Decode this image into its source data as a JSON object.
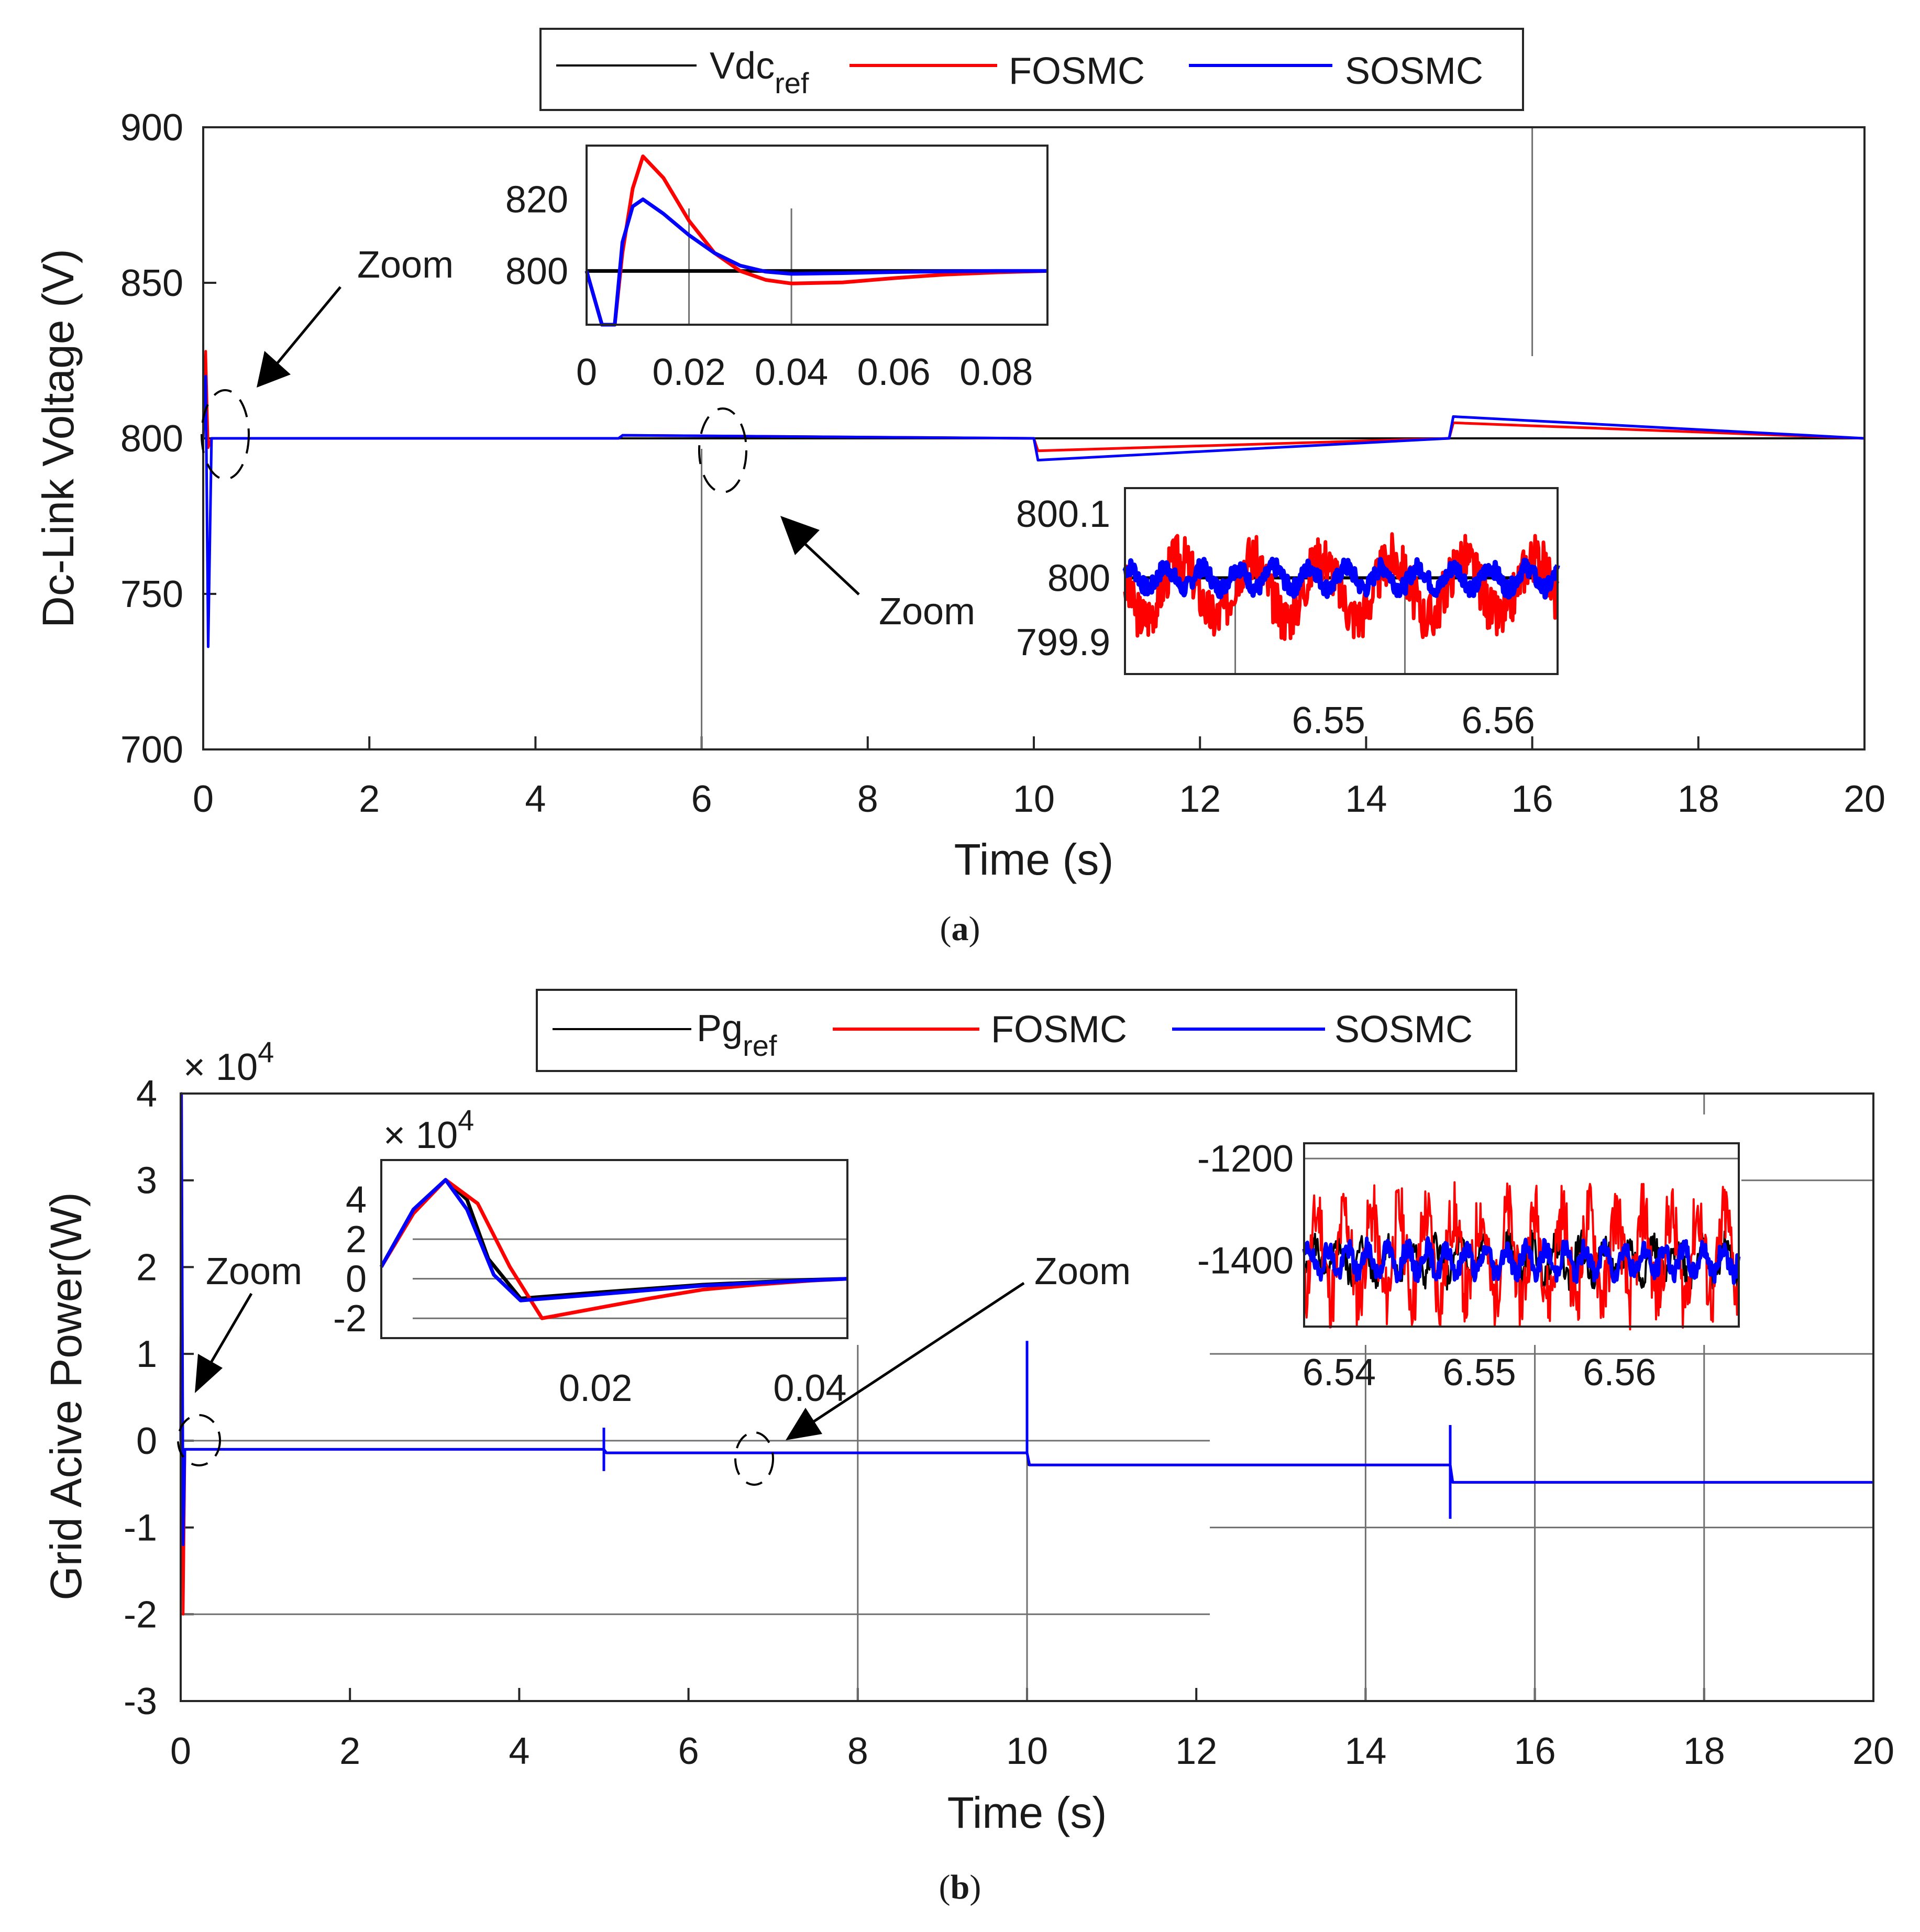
{
  "colors": {
    "ref": "#000000",
    "fosmc": "#ff0000",
    "sosmc": "#0000ff",
    "grid": "#707070"
  },
  "chart_data": [
    {
      "type": "line",
      "caption": "(a)",
      "caption_letter": "a",
      "xlabel": "Time (s)",
      "ylabel": "Dc-Link Voltage (V)",
      "xlim": [
        0,
        20
      ],
      "ylim": [
        700,
        900
      ],
      "xticks": [
        "0",
        "2",
        "4",
        "6",
        "8",
        "10",
        "12",
        "14",
        "16",
        "18",
        "20"
      ],
      "yticks": [
        "700",
        "750",
        "800",
        "850",
        "900"
      ],
      "legend": {
        "position": "top-outside",
        "entries": [
          "Vdc",
          "FOSMC",
          "SOSMC"
        ],
        "ref_base": "Vdc",
        "ref_sub": "ref"
      },
      "series": [
        {
          "name": "Vdc_ref",
          "x": [
            0,
            20
          ],
          "y": [
            800,
            800
          ]
        },
        {
          "name": "FOSMC",
          "x": [
            0,
            0.03,
            0.06,
            0.1,
            0.3,
            5,
            5.05,
            10,
            10.05,
            15,
            15.05,
            20
          ],
          "y": [
            800,
            828,
            797,
            800,
            800,
            800,
            801,
            800,
            796,
            800,
            805,
            800
          ]
        },
        {
          "name": "SOSMC",
          "x": [
            0,
            0.03,
            0.06,
            0.1,
            0.3,
            5,
            5.05,
            10,
            10.05,
            15,
            15.05,
            20
          ],
          "y": [
            800,
            820,
            733,
            800,
            800,
            800,
            801,
            800,
            793,
            800,
            807,
            800
          ]
        }
      ],
      "vertical_lines": [
        6,
        16
      ],
      "annotations": [
        "Zoom",
        "Zoom"
      ],
      "insets": [
        {
          "xlim": [
            0,
            0.09
          ],
          "ylim": [
            785,
            835
          ],
          "xticks": [
            "0",
            "0.02",
            "0.04",
            "0.06",
            "0.08"
          ],
          "yticks": [
            "800",
            "820"
          ],
          "series": [
            {
              "name": "Vdc_ref",
              "x": [
                0,
                0.09
              ],
              "y": [
                800,
                800
              ]
            },
            {
              "name": "FOSMC",
              "x": [
                0,
                0.003,
                0.0055,
                0.007,
                0.009,
                0.011,
                0.015,
                0.02,
                0.025,
                0.03,
                0.035,
                0.04,
                0.05,
                0.06,
                0.07,
                0.08,
                0.09
              ],
              "y": [
                800,
                785,
                785,
                805,
                823,
                832,
                826,
                814,
                805,
                800,
                797.5,
                796.5,
                796.8,
                798,
                799,
                799.6,
                800
              ]
            },
            {
              "name": "SOSMC",
              "x": [
                0,
                0.003,
                0.0055,
                0.007,
                0.009,
                0.011,
                0.015,
                0.02,
                0.025,
                0.03,
                0.035,
                0.04,
                0.05,
                0.06,
                0.07,
                0.08,
                0.09
              ],
              "y": [
                800,
                785,
                785,
                808,
                818,
                820,
                816,
                810,
                805,
                801.5,
                799.8,
                799.2,
                799.4,
                799.7,
                799.9,
                800,
                800
              ]
            }
          ]
        },
        {
          "xlim": [
            6.538,
            6.5635
          ],
          "ylim": [
            799.85,
            800.14
          ],
          "xticks": [
            "6.55",
            "6.56"
          ],
          "yticks": [
            "799.9",
            "800",
            "800.1"
          ],
          "series": [
            {
              "name": "Vdc_ref",
              "note": "constant 800"
            },
            {
              "name": "FOSMC",
              "note": "oscillation approx. 799.9 to 800.07"
            },
            {
              "name": "SOSMC",
              "note": "oscillation approx. 799.97 to 800.03"
            }
          ]
        }
      ]
    },
    {
      "type": "line",
      "caption": "(b)",
      "caption_letter": "b",
      "xlabel": "Time (s)",
      "ylabel": "Grid Acive Power(W)",
      "xlim": [
        0,
        20
      ],
      "ylim": [
        -30000,
        40000
      ],
      "y_multiplier": "× 10^4",
      "y_multiplier_base": "× 10",
      "y_multiplier_exp": "4",
      "xticks": [
        "0",
        "2",
        "4",
        "6",
        "8",
        "10",
        "12",
        "14",
        "16",
        "18",
        "20"
      ],
      "yticks": [
        "-3",
        "-2",
        "-1",
        "0",
        "1",
        "2",
        "3",
        "4"
      ],
      "legend": {
        "position": "top-outside",
        "entries": [
          "Pg",
          "FOSMC",
          "SOSMC"
        ],
        "ref_base": "Pg",
        "ref_sub": "ref"
      },
      "series": [
        {
          "name": "Pg_ref",
          "x": [
            0.04,
            0.3,
            5,
            5.02,
            10,
            10.02,
            15,
            15.02,
            20
          ],
          "y": [
            -1000,
            -1000,
            -1000,
            -1400,
            -1400,
            -2800,
            -2800,
            -4800,
            -4800
          ]
        },
        {
          "name": "FOSMC",
          "x": [
            0,
            0.01,
            0.03,
            0.05,
            0.1,
            5,
            5.03,
            10,
            10.03,
            15,
            15.03,
            20
          ],
          "y": [
            0,
            40000,
            -20000,
            -1000,
            -1000,
            -1000,
            -1400,
            -1400,
            -2800,
            -2800,
            -4800,
            -4800
          ]
        },
        {
          "name": "SOSMC",
          "x": [
            0,
            0.01,
            0.03,
            0.05,
            0.1,
            5,
            5.03,
            10,
            10.03,
            15,
            15.03,
            20
          ],
          "y": [
            0,
            40000,
            -12000,
            -1000,
            -1000,
            -1000,
            -1400,
            -1400,
            -2800,
            -2800,
            -4800,
            -4800
          ]
        }
      ],
      "vertical_lines": [
        8,
        10,
        14,
        16
      ],
      "annotations": [
        "Zoom",
        "Zoom"
      ],
      "insets": [
        {
          "xlim": [
            0,
            0.0435
          ],
          "ylim": [
            -30000,
            60000
          ],
          "y_multiplier": "× 10^4",
          "y_multiplier_base": "× 10",
          "y_multiplier_exp": "4",
          "xticks": [
            "0.02",
            "0.04"
          ],
          "yticks": [
            "-2",
            "0",
            "2",
            "4"
          ],
          "series": [
            {
              "name": "Pg_ref",
              "x": [
                0,
                0.003,
                0.006,
                0.008,
                0.01,
                0.013,
                0.02,
                0.03,
                0.04,
                0.0435
              ],
              "y": [
                6000,
                35000,
                50000,
                40000,
                10000,
                -10000,
                -7000,
                -3000,
                -500,
                0
              ]
            },
            {
              "name": "FOSMC",
              "x": [
                0,
                0.003,
                0.006,
                0.009,
                0.012,
                0.015,
                0.02,
                0.025,
                0.03,
                0.035,
                0.04,
                0.0435
              ],
              "y": [
                6000,
                33000,
                50000,
                38000,
                6000,
                -20000,
                -15000,
                -10000,
                -5500,
                -3000,
                -1000,
                0
              ]
            },
            {
              "name": "SOSMC",
              "x": [
                0,
                0.003,
                0.006,
                0.008,
                0.0105,
                0.013,
                0.02,
                0.03,
                0.04,
                0.0435
              ],
              "y": [
                6000,
                35000,
                50000,
                35000,
                2000,
                -11000,
                -8000,
                -3500,
                -800,
                0
              ]
            }
          ]
        },
        {
          "xlim": [
            6.5375,
            6.5685
          ],
          "ylim": [
            -1530,
            -1170
          ],
          "xticks": [
            "6.54",
            "6.55",
            "6.56"
          ],
          "yticks": [
            "-1200",
            "-1400"
          ],
          "series": [
            {
              "name": "Pg_ref",
              "note": "noise around -1400"
            },
            {
              "name": "FOSMC",
              "note": "noise approx. -1520 to -1180"
            },
            {
              "name": "SOSMC",
              "note": "noise approx. -1440 to -1360"
            }
          ]
        }
      ]
    }
  ]
}
